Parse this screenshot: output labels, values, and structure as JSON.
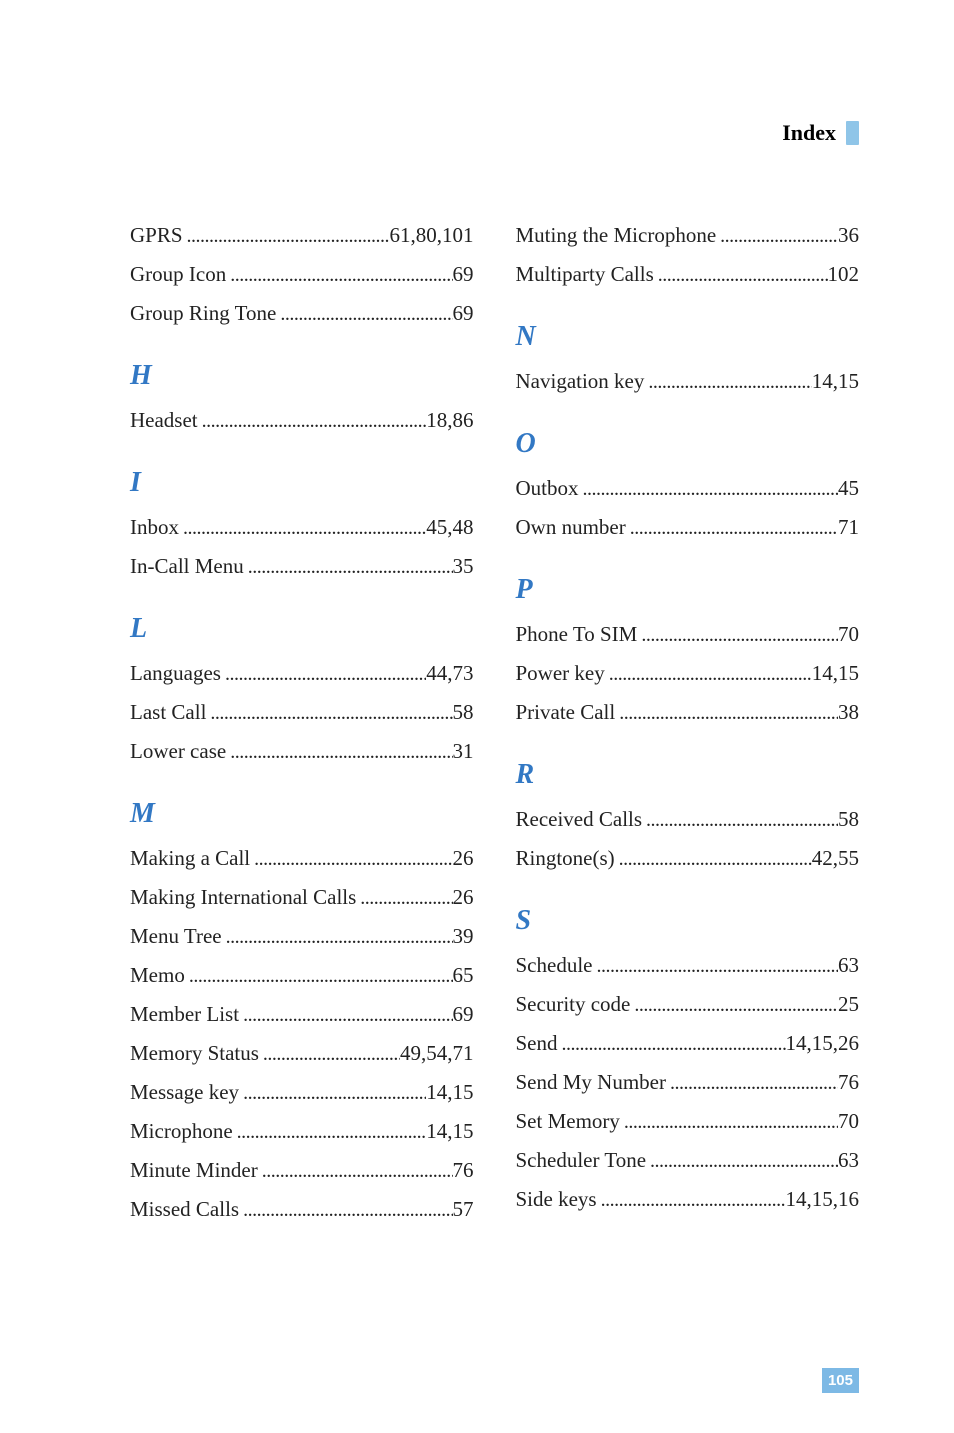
{
  "header": {
    "title": "Index"
  },
  "pageNumber": "105",
  "colors": {
    "sectionLetter": "#3278c4",
    "headerMarker": "#8fc5e8",
    "pageBox": "#7db9e5",
    "text": "#222222",
    "background": "#ffffff"
  },
  "typography": {
    "bodyFontSize": 21,
    "letterFontSize": 28,
    "headerFontSize": 22
  },
  "leftColumn": [
    {
      "type": "entry",
      "label": "GPRS",
      "page": "61,80,101"
    },
    {
      "type": "entry",
      "label": "Group Icon",
      "page": "69"
    },
    {
      "type": "entry",
      "label": "Group Ring Tone",
      "page": "69"
    },
    {
      "type": "letter",
      "value": "H"
    },
    {
      "type": "entry",
      "label": "Headset",
      "page": "18,86"
    },
    {
      "type": "letter",
      "value": "I"
    },
    {
      "type": "entry",
      "label": "Inbox",
      "page": "45,48"
    },
    {
      "type": "entry",
      "label": "In-Call Menu",
      "page": "35"
    },
    {
      "type": "letter",
      "value": "L"
    },
    {
      "type": "entry",
      "label": "Languages",
      "page": "44,73"
    },
    {
      "type": "entry",
      "label": "Last Call",
      "page": "58"
    },
    {
      "type": "entry",
      "label": "Lower case",
      "page": "31"
    },
    {
      "type": "letter",
      "value": "M"
    },
    {
      "type": "entry",
      "label": "Making a Call",
      "page": "26"
    },
    {
      "type": "entry",
      "label": "Making International Calls",
      "page": "26"
    },
    {
      "type": "entry",
      "label": "Menu Tree",
      "page": "39"
    },
    {
      "type": "entry",
      "label": "Memo",
      "page": "65"
    },
    {
      "type": "entry",
      "label": "Member List",
      "page": "69"
    },
    {
      "type": "entry",
      "label": "Memory Status",
      "page": "49,54,71"
    },
    {
      "type": "entry",
      "label": "Message key",
      "page": "14,15"
    },
    {
      "type": "entry",
      "label": "Microphone",
      "page": "14,15"
    },
    {
      "type": "entry",
      "label": "Minute Minder",
      "page": "76"
    },
    {
      "type": "entry",
      "label": "Missed Calls",
      "page": "57"
    }
  ],
  "rightColumn": [
    {
      "type": "entry",
      "label": "Muting the Microphone",
      "page": "36"
    },
    {
      "type": "entry",
      "label": "Multiparty Calls",
      "page": "102"
    },
    {
      "type": "letter",
      "value": "N"
    },
    {
      "type": "entry",
      "label": "Navigation key",
      "page": "14,15"
    },
    {
      "type": "letter",
      "value": "O"
    },
    {
      "type": "entry",
      "label": "Outbox",
      "page": "45"
    },
    {
      "type": "entry",
      "label": "Own number",
      "page": "71"
    },
    {
      "type": "letter",
      "value": "P"
    },
    {
      "type": "entry",
      "label": "Phone To SIM",
      "page": "70"
    },
    {
      "type": "entry",
      "label": "Power key",
      "page": "14,15"
    },
    {
      "type": "entry",
      "label": "Private Call",
      "page": "38"
    },
    {
      "type": "letter",
      "value": "R"
    },
    {
      "type": "entry",
      "label": "Received Calls",
      "page": "58"
    },
    {
      "type": "entry",
      "label": "Ringtone(s)",
      "page": "42,55"
    },
    {
      "type": "letter",
      "value": "S"
    },
    {
      "type": "entry",
      "label": "Schedule",
      "page": "63"
    },
    {
      "type": "entry",
      "label": "Security code",
      "page": "25"
    },
    {
      "type": "entry",
      "label": "Send",
      "page": "14,15,26"
    },
    {
      "type": "entry",
      "label": "Send My Number",
      "page": "76"
    },
    {
      "type": "entry",
      "label": "Set Memory",
      "page": "70"
    },
    {
      "type": "entry",
      "label": "Scheduler Tone",
      "page": "63"
    },
    {
      "type": "entry",
      "label": "Side keys",
      "page": "14,15,16"
    }
  ]
}
